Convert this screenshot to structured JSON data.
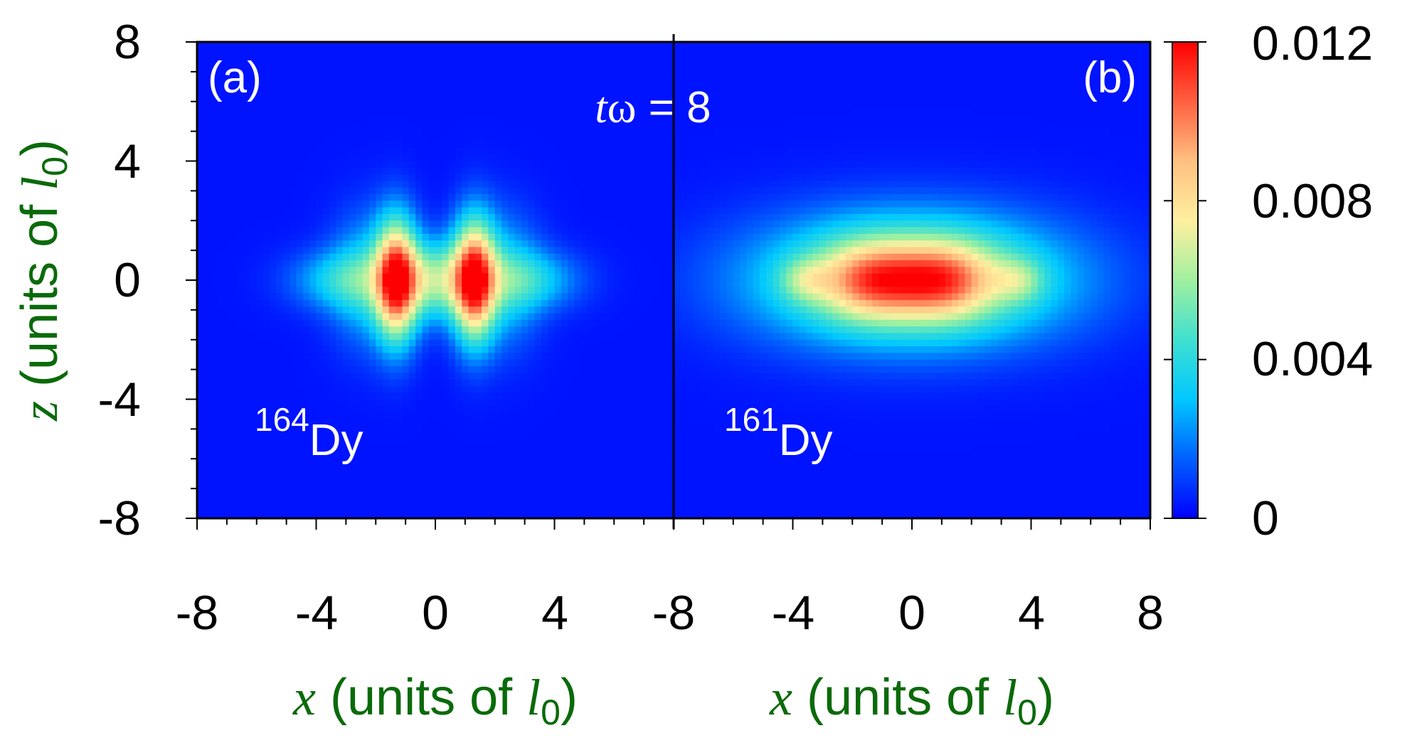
{
  "chart_data": {
    "type": "heatmap",
    "time_label": {
      "var": "t",
      "omega": "ω",
      "rest": " = 8"
    },
    "panels": [
      {
        "letter": "(a)",
        "isotope_mass": "164",
        "isotope_symbol": "Dy"
      },
      {
        "letter": "(b)",
        "isotope_mass": "161",
        "isotope_symbol": "Dy"
      }
    ],
    "x_axis": {
      "var": "x",
      "text": " (units of ",
      "unit_var": "l",
      "unit_sub": "0",
      "close": ")",
      "range": [
        -8,
        8
      ],
      "tick_labels": [
        "-8",
        "-4",
        "0",
        "4",
        "8"
      ]
    },
    "y_axis": {
      "var": "z",
      "text": " (units of ",
      "unit_var": "l",
      "unit_sub": "0",
      "close": ")",
      "range": [
        -8,
        8
      ],
      "tick_labels": [
        "8",
        "4",
        "0",
        "-4",
        "-8"
      ]
    },
    "colorbar": {
      "range": [
        0,
        0.012
      ],
      "tick_labels": [
        "0.012",
        "0.008",
        "0.004",
        "0"
      ],
      "colormap": [
        "#0000ff",
        "#0060ff",
        "#00c8ff",
        "#40e0d0",
        "#a0f0a0",
        "#fff0a0",
        "#ffc080",
        "#ff6040",
        "#ff0000"
      ]
    },
    "density_peaks": [
      {
        "panel": "a",
        "background": 0.0003,
        "components": [
          {
            "x": -1.3,
            "z": 0,
            "sx": 0.5,
            "sz": 1.4,
            "amp": 0.0105
          },
          {
            "x": 1.3,
            "z": 0,
            "sx": 0.5,
            "sz": 1.4,
            "amp": 0.0105
          },
          {
            "x": 0,
            "z": 0,
            "sx": 0.8,
            "sz": 0.9,
            "amp": 0.0055
          },
          {
            "x": -3.2,
            "z": 0,
            "sx": 1.2,
            "sz": 0.7,
            "amp": 0.0028
          },
          {
            "x": 3.2,
            "z": 0,
            "sx": 1.2,
            "sz": 0.7,
            "amp": 0.0028
          },
          {
            "x": -2.4,
            "z": 0,
            "sx": 0.8,
            "sz": 1.5,
            "amp": 0.0028
          },
          {
            "x": 2.4,
            "z": 0,
            "sx": 0.8,
            "sz": 1.5,
            "amp": 0.0028
          }
        ]
      },
      {
        "panel": "b",
        "background": 0.0003,
        "components": [
          {
            "x": 0,
            "z": 0,
            "sx": 3.6,
            "sz": 1.5,
            "amp": 0.0068
          },
          {
            "x": -1.4,
            "z": 0,
            "sx": 1.2,
            "sz": 0.9,
            "amp": 0.0045
          },
          {
            "x": 1.1,
            "z": 0,
            "sx": 1.2,
            "sz": 0.9,
            "amp": 0.0045
          },
          {
            "x": -3.6,
            "z": 0,
            "sx": 0.6,
            "sz": 0.5,
            "amp": 0.0022
          },
          {
            "x": 3.6,
            "z": 0,
            "sx": 0.6,
            "sz": 0.5,
            "amp": 0.0022
          }
        ]
      }
    ]
  }
}
